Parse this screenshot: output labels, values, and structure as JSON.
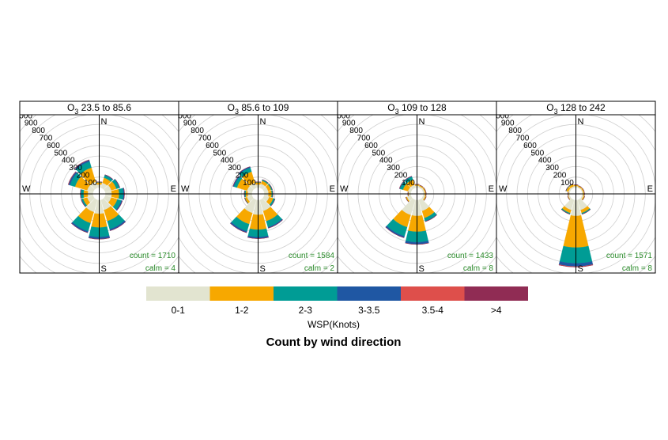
{
  "chart_data": {
    "type": "windrose",
    "caption": "Count by wind direction",
    "legend_title": "WSP(Knots)",
    "compass": [
      "N",
      "E",
      "S",
      "W"
    ],
    "directions": [
      0,
      30,
      60,
      90,
      120,
      150,
      180,
      210,
      240,
      270,
      300,
      330
    ],
    "rlim": [
      0,
      1000
    ],
    "rticks": [
      100,
      200,
      300,
      400,
      500,
      600,
      700,
      800,
      900,
      1000
    ],
    "series": [
      {
        "name": "0-1",
        "color": "#e2e4d0"
      },
      {
        "name": "1-2",
        "color": "#f7a800"
      },
      {
        "name": "2-3",
        "color": "#009c95"
      },
      {
        "name": "3-3.5",
        "color": "#1f57a3"
      },
      {
        "name": "3.5-4",
        "color": "#de4f4b"
      },
      {
        "name": ">4",
        "color": "#902c54"
      }
    ],
    "panels": [
      {
        "title": {
          "symbol": "O",
          "subscript": "3",
          "range": "23.5 to 85.6"
        },
        "count_label": "count = 1710",
        "calm_label": "calm = 4",
        "values": [
          [
            30,
            50,
            60,
            60,
            60,
            100,
            130,
            120,
            60,
            50,
            60,
            60
          ],
          [
            20,
            50,
            50,
            70,
            60,
            110,
            130,
            110,
            40,
            40,
            120,
            140
          ],
          [
            5,
            25,
            30,
            40,
            40,
            80,
            90,
            80,
            15,
            25,
            50,
            60
          ],
          [
            0,
            5,
            5,
            10,
            10,
            15,
            20,
            15,
            5,
            5,
            15,
            15
          ],
          [
            0,
            0,
            0,
            0,
            0,
            0,
            0,
            0,
            0,
            0,
            3,
            3
          ],
          [
            0,
            0,
            0,
            0,
            0,
            0,
            0,
            0,
            0,
            0,
            0,
            0
          ]
        ]
      },
      {
        "title": {
          "symbol": "O",
          "subscript": "3",
          "range": "85.6 to 109"
        },
        "count_label": "count = 1584",
        "calm_label": "calm = 2",
        "values": [
          [
            30,
            40,
            40,
            40,
            50,
            110,
            140,
            130,
            50,
            40,
            50,
            50
          ],
          [
            20,
            30,
            30,
            30,
            40,
            100,
            140,
            110,
            20,
            20,
            100,
            110
          ],
          [
            5,
            10,
            10,
            10,
            15,
            60,
            70,
            70,
            5,
            10,
            30,
            40
          ],
          [
            0,
            2,
            2,
            2,
            3,
            10,
            15,
            15,
            0,
            2,
            10,
            10
          ],
          [
            0,
            0,
            0,
            0,
            0,
            0,
            0,
            0,
            0,
            0,
            0,
            0
          ],
          [
            0,
            0,
            0,
            0,
            0,
            0,
            0,
            0,
            0,
            0,
            0,
            0
          ]
        ]
      },
      {
        "title": {
          "symbol": "O",
          "subscript": "3",
          "range": "109 to 128"
        },
        "count_label": "count = 1433",
        "calm_label": "calm = 8",
        "values": [
          [
            20,
            15,
            15,
            15,
            20,
            110,
            150,
            150,
            40,
            20,
            30,
            30
          ],
          [
            10,
            10,
            10,
            10,
            10,
            70,
            150,
            120,
            10,
            5,
            50,
            50
          ],
          [
            2,
            2,
            2,
            2,
            2,
            30,
            100,
            90,
            2,
            2,
            30,
            30
          ],
          [
            0,
            0,
            0,
            0,
            0,
            5,
            20,
            15,
            0,
            0,
            5,
            5
          ],
          [
            0,
            0,
            0,
            0,
            0,
            0,
            0,
            0,
            0,
            0,
            0,
            0
          ],
          [
            0,
            0,
            0,
            0,
            0,
            0,
            0,
            0,
            0,
            0,
            0,
            0
          ]
        ]
      },
      {
        "title": {
          "symbol": "O",
          "subscript": "3",
          "range": "128 to 242"
        },
        "count_label": "count = 1571",
        "calm_label": "calm = 8",
        "values": [
          [
            15,
            10,
            10,
            10,
            15,
            100,
            150,
            100,
            15,
            10,
            15,
            15
          ],
          [
            10,
            10,
            10,
            10,
            10,
            30,
            300,
            30,
            5,
            5,
            20,
            20
          ],
          [
            2,
            2,
            2,
            2,
            2,
            10,
            150,
            10,
            2,
            2,
            5,
            5
          ],
          [
            0,
            0,
            0,
            0,
            0,
            2,
            30,
            2,
            0,
            0,
            0,
            0
          ],
          [
            0,
            0,
            0,
            0,
            0,
            0,
            5,
            0,
            0,
            0,
            0,
            0
          ],
          [
            0,
            0,
            0,
            0,
            0,
            0,
            0,
            0,
            0,
            0,
            0,
            0
          ]
        ]
      }
    ]
  }
}
